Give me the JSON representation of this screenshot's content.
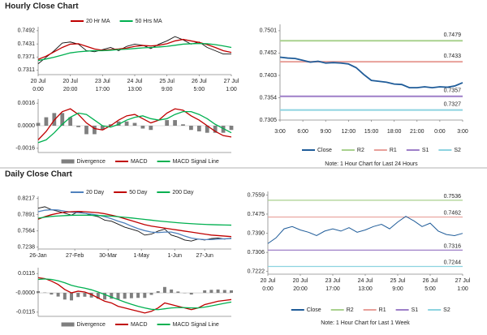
{
  "headers": [
    "Hourly Close Chart",
    "Daily Close Chart"
  ],
  "chart_data": [
    {
      "type": "line",
      "series": [
        {
          "name": "Close",
          "color": "#111111",
          "legend": false,
          "values": [
            0.734,
            0.737,
            0.74,
            0.7435,
            0.744,
            0.743,
            0.74,
            0.7395,
            0.7405,
            0.7415,
            0.74,
            0.742,
            0.743,
            0.7425,
            0.741,
            0.743,
            0.7445,
            0.7465,
            0.745,
            0.743,
            0.744,
            0.7415,
            0.74,
            0.7385,
            0.7385
          ]
        },
        {
          "name": "20 Hr MA",
          "color": "#c00000",
          "values": [
            0.736,
            0.7375,
            0.7395,
            0.7415,
            0.743,
            0.7432,
            0.742,
            0.7408,
            0.7402,
            0.7405,
            0.7408,
            0.7412,
            0.742,
            0.7424,
            0.7422,
            0.7425,
            0.7432,
            0.7445,
            0.7452,
            0.7445,
            0.7438,
            0.7428,
            0.7415,
            0.74,
            0.7392
          ]
        },
        {
          "name": "50 Hrs MA",
          "color": "#00b050",
          "values": [
            0.7355,
            0.7362,
            0.737,
            0.738,
            0.739,
            0.7395,
            0.7398,
            0.74,
            0.74,
            0.7402,
            0.7405,
            0.7407,
            0.741,
            0.7413,
            0.7415,
            0.7417,
            0.742,
            0.7425,
            0.743,
            0.7432,
            0.7433,
            0.7432,
            0.7428,
            0.7422,
            0.7415
          ]
        }
      ],
      "xlim": [
        0,
        24
      ],
      "xticks": [
        {
          "value": 0,
          "label": [
            "20 Jul",
            "0:00"
          ]
        },
        {
          "value": 4,
          "label": [
            "20 Jul",
            "20:00"
          ]
        },
        {
          "value": 8,
          "label": [
            "23 Jul",
            "17:00"
          ]
        },
        {
          "value": 12,
          "label": [
            "24 Jul",
            "13:00"
          ]
        },
        {
          "value": 16,
          "label": [
            "25 Jul",
            "9:00"
          ]
        },
        {
          "value": 20,
          "label": [
            "26 Jul",
            "5:00"
          ]
        },
        {
          "value": 24,
          "label": [
            "27 Jul",
            "1:00"
          ]
        }
      ],
      "ylim": [
        0.729,
        0.751
      ],
      "yticks": [
        0.7311,
        0.7371,
        0.7431,
        0.7492
      ]
    },
    {
      "type": "macd",
      "series": [
        {
          "name": "Divergence",
          "color": "#7f7f7f",
          "values": [
            0.0002,
            0.0006,
            0.0009,
            0.0009,
            0.0006,
            -0.0001,
            -0.0006,
            -0.0006,
            -0.0003,
            0.0001,
            0.0003,
            0.0003,
            0.0002,
            -0.0002,
            -0.0003,
            0,
            0.0004,
            0.0004,
            0.0001,
            -0.0003,
            -0.0004,
            -0.0005,
            -0.0005,
            -0.0005,
            -0.0003
          ]
        },
        {
          "name": "MACD",
          "color": "#c00000",
          "values": [
            -0.001,
            -0.0004,
            0.0004,
            0.001,
            0.0012,
            0.0008,
            0.0002,
            -0.0002,
            -0.0003,
            0,
            0.0004,
            0.0007,
            0.0008,
            0.0005,
            0.0002,
            0.0004,
            0.0009,
            0.0012,
            0.0011,
            0.0007,
            0.0004,
            0,
            -0.0004,
            -0.0007,
            -0.0008
          ]
        },
        {
          "name": "MACD Signal Line",
          "color": "#00b050",
          "values": [
            -0.0012,
            -0.001,
            -0.0005,
            0.0001,
            0.0006,
            0.0009,
            0.0008,
            0.0004,
            0,
            -0.0001,
            0.0001,
            0.0004,
            0.0006,
            0.0007,
            0.0005,
            0.0004,
            0.0005,
            0.0008,
            0.001,
            0.001,
            0.0008,
            0.0005,
            0.0001,
            -0.0002,
            -0.0005
          ]
        }
      ],
      "xlim": [
        0,
        24
      ],
      "ylim": [
        -0.0019,
        0.0019
      ],
      "yticks": [
        -0.0016,
        {
          "value": 0,
          "label": "0.0000"
        },
        0.0016
      ]
    },
    {
      "type": "levels",
      "series": [
        {
          "name": "Close",
          "color": "#1f5c99",
          "values": [
            0.7443,
            0.7441,
            0.744,
            0.7436,
            0.7432,
            0.7434,
            0.743,
            0.7431,
            0.743,
            0.7428,
            0.742,
            0.7405,
            0.7392,
            0.739,
            0.7388,
            0.7384,
            0.7383,
            0.7376,
            0.7376,
            0.7378,
            0.7376,
            0.7378,
            0.7377,
            0.738,
            0.7387
          ]
        }
      ],
      "levels": [
        {
          "name": "R2",
          "color": "#a9d18e",
          "value": 0.7479
        },
        {
          "name": "R1",
          "color": "#e8a09a",
          "value": 0.7433
        },
        {
          "name": "S1",
          "color": "#9e7fc8",
          "value": 0.7357
        },
        {
          "name": "S2",
          "color": "#8dd3e0",
          "value": 0.7327
        }
      ],
      "xlim": [
        0,
        24
      ],
      "xticks": [
        {
          "value": 0,
          "label": "3:00"
        },
        {
          "value": 3,
          "label": "6:00"
        },
        {
          "value": 6,
          "label": "9:00"
        },
        {
          "value": 9,
          "label": "12:00"
        },
        {
          "value": 12,
          "label": "15:00"
        },
        {
          "value": 15,
          "label": "18:00"
        },
        {
          "value": 18,
          "label": "21:00"
        },
        {
          "value": 21,
          "label": "0:00"
        },
        {
          "value": 24,
          "label": "3:00"
        }
      ],
      "ylim": [
        0.7305,
        0.7515
      ],
      "yticks": [
        0.7305,
        0.7354,
        0.7403,
        0.7452,
        0.7501
      ],
      "note": "Note: 1 Hour Chart for Last 24 Hours"
    },
    {
      "type": "line",
      "series": [
        {
          "name": "Close",
          "color": "#111111",
          "legend": false,
          "values": [
            0.802,
            0.805,
            0.799,
            0.796,
            0.792,
            0.788,
            0.795,
            0.792,
            0.788,
            0.785,
            0.778,
            0.776,
            0.77,
            0.764,
            0.76,
            0.756,
            0.748,
            0.75,
            0.756,
            0.76,
            0.748,
            0.744,
            0.738,
            0.736,
            0.74,
            0.738,
            0.741,
            0.742,
            0.74,
            0.742
          ]
        },
        {
          "name": "20 Day",
          "color": "#4f81bd",
          "values": [
            0.795,
            0.798,
            0.799,
            0.7985,
            0.796,
            0.794,
            0.793,
            0.792,
            0.79,
            0.788,
            0.785,
            0.781,
            0.776,
            0.772,
            0.766,
            0.761,
            0.757,
            0.754,
            0.753,
            0.754,
            0.754,
            0.751,
            0.746,
            0.742,
            0.74,
            0.739,
            0.739,
            0.74,
            0.7405,
            0.741
          ]
        },
        {
          "name": "50 Day",
          "color": "#c00000",
          "values": [
            0.78,
            0.785,
            0.789,
            0.792,
            0.794,
            0.795,
            0.7955,
            0.795,
            0.794,
            0.793,
            0.791,
            0.788,
            0.785,
            0.781,
            0.777,
            0.773,
            0.769,
            0.766,
            0.764,
            0.762,
            0.76,
            0.758,
            0.756,
            0.754,
            0.752,
            0.75,
            0.748,
            0.747,
            0.746,
            0.745
          ]
        },
        {
          "name": "200 Day",
          "color": "#00b050",
          "values": [
            0.782,
            0.784,
            0.7855,
            0.7865,
            0.7872,
            0.7878,
            0.788,
            0.788,
            0.7878,
            0.7874,
            0.7868,
            0.786,
            0.785,
            0.7838,
            0.7825,
            0.781,
            0.7795,
            0.778,
            0.7765,
            0.7752,
            0.774,
            0.7728,
            0.7718,
            0.771,
            0.7702,
            0.7695,
            0.769,
            0.7686,
            0.7683,
            0.768
          ]
        }
      ],
      "xlim": [
        0,
        29
      ],
      "xticks": [
        {
          "value": 0,
          "label": "26-Jan"
        },
        {
          "value": 5.5,
          "label": "27-Feb"
        },
        {
          "value": 10.5,
          "label": "30-Mar"
        },
        {
          "value": 15.5,
          "label": "1-May"
        },
        {
          "value": 20.5,
          "label": "1-Jun"
        },
        {
          "value": 25,
          "label": "27-Jun"
        }
      ],
      "ylim": [
        0.72,
        0.826
      ],
      "yticks": [
        0.7238,
        0.7564,
        0.7891,
        0.8217
      ]
    },
    {
      "type": "macd",
      "series": [
        {
          "name": "Divergence",
          "color": "#7f7f7f",
          "values": [
            0.001,
            0.0002,
            -0.001,
            -0.0022,
            -0.004,
            -0.0045,
            -0.0025,
            -0.0023,
            -0.0028,
            -0.0035,
            -0.004,
            -0.0035,
            -0.004,
            -0.0035,
            -0.0032,
            -0.003,
            -0.003,
            -0.0012,
            0.001,
            0.0035,
            0.002,
            0.0008,
            -0.0002,
            -0.001,
            0,
            0.0015,
            0.0018,
            0.002,
            0.0017,
            0.0015
          ]
        },
        {
          "name": "MACD",
          "color": "#c00000",
          "values": [
            0.009,
            0.0085,
            0.007,
            0.005,
            0.002,
            0,
            0.001,
            0.0005,
            -0.001,
            -0.003,
            -0.005,
            -0.006,
            -0.008,
            -0.009,
            -0.01,
            -0.011,
            -0.012,
            -0.011,
            -0.009,
            -0.006,
            -0.007,
            -0.008,
            -0.009,
            -0.01,
            -0.009,
            -0.007,
            -0.006,
            -0.005,
            -0.0045,
            -0.004
          ]
        },
        {
          "name": "MACD Signal Line",
          "color": "#00b050",
          "values": [
            0.008,
            0.0083,
            0.008,
            0.0072,
            0.006,
            0.0045,
            0.0035,
            0.0028,
            0.0018,
            0.0005,
            -0.001,
            -0.0025,
            -0.004,
            -0.0055,
            -0.0068,
            -0.008,
            -0.009,
            -0.0098,
            -0.01,
            -0.0095,
            -0.009,
            -0.0088,
            -0.0088,
            -0.009,
            -0.009,
            -0.0085,
            -0.0078,
            -0.007,
            -0.0062,
            -0.0055
          ]
        }
      ],
      "xlim": [
        0,
        29
      ],
      "ylim": [
        -0.014,
        0.015
      ],
      "yticks": [
        -0.0115,
        {
          "value": 0,
          "label": "-0.0000"
        },
        0.0115
      ]
    },
    {
      "type": "levels",
      "series": [
        {
          "name": "Close",
          "color": "#1f5c99",
          "values": [
            0.7345,
            0.737,
            0.741,
            0.742,
            0.7405,
            0.7395,
            0.738,
            0.74,
            0.741,
            0.74,
            0.7415,
            0.7395,
            0.7405,
            0.742,
            0.743,
            0.741,
            0.744,
            0.7465,
            0.7445,
            0.742,
            0.7435,
            0.74,
            0.7385,
            0.738,
            0.739
          ]
        }
      ],
      "levels": [
        {
          "name": "R2",
          "color": "#a9d18e",
          "value": 0.7536
        },
        {
          "name": "R1",
          "color": "#e8a09a",
          "value": 0.7462
        },
        {
          "name": "S1",
          "color": "#9e7fc8",
          "value": 0.7316
        },
        {
          "name": "S2",
          "color": "#8dd3e0",
          "value": 0.7244
        }
      ],
      "xlim": [
        0,
        24
      ],
      "xticks": [
        {
          "value": 0,
          "label": [
            "20 Jul",
            "0:00"
          ]
        },
        {
          "value": 4,
          "label": [
            "20 Jul",
            "20:00"
          ]
        },
        {
          "value": 8,
          "label": [
            "23 Jul",
            "17:00"
          ]
        },
        {
          "value": 12,
          "label": [
            "24 Jul",
            "13:00"
          ]
        },
        {
          "value": 16,
          "label": [
            "25 Jul",
            "9:00"
          ]
        },
        {
          "value": 20,
          "label": [
            "26 Jul",
            "5:00"
          ]
        },
        {
          "value": 24,
          "label": [
            "27 Jul",
            "1:00"
          ]
        }
      ],
      "ylim": [
        0.721,
        0.7575
      ],
      "yticks": [
        0.7222,
        0.7306,
        {
          "value": 0.739,
          "label": "0.7390"
        },
        0.7475,
        0.7559
      ],
      "note": "Note: 1 Hour Chart for Last 1 Week"
    }
  ]
}
